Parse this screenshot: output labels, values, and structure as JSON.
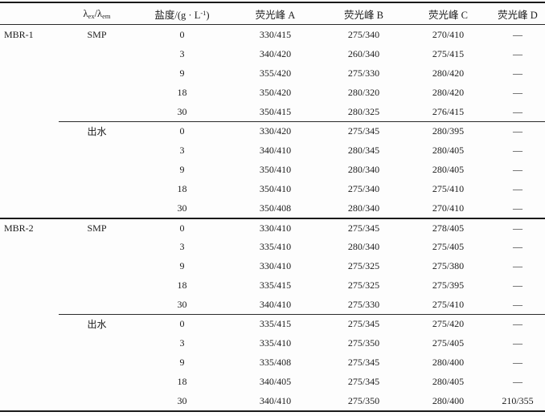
{
  "header": {
    "lambda": {
      "l1": "λ",
      "s1": "ex",
      "l2": "/λ",
      "s2": "em"
    },
    "salinity": {
      "p1": "盐度/(g · L",
      "sup": "-1",
      "p2": ")"
    },
    "peakA": "荧光峰 A",
    "peakB": "荧光峰 B",
    "peakC": "荧光峰 C",
    "peakD": "荧光峰 D"
  },
  "table": {
    "rows": [
      {
        "group": "MBR-1",
        "sample": "SMP",
        "salinity": "0",
        "peakA": "330/415",
        "peakB": "275/340",
        "peakC": "270/410",
        "peakD": "—",
        "separator": "none"
      },
      {
        "group": "",
        "sample": "",
        "salinity": "3",
        "peakA": "340/420",
        "peakB": "260/340",
        "peakC": "275/415",
        "peakD": "—",
        "separator": "none"
      },
      {
        "group": "",
        "sample": "",
        "salinity": "9",
        "peakA": "355/420",
        "peakB": "275/330",
        "peakC": "280/420",
        "peakD": "—",
        "separator": "none"
      },
      {
        "group": "",
        "sample": "",
        "salinity": "18",
        "peakA": "350/420",
        "peakB": "280/320",
        "peakC": "280/420",
        "peakD": "—",
        "separator": "none"
      },
      {
        "group": "",
        "sample": "",
        "salinity": "30",
        "peakA": "350/415",
        "peakB": "280/325",
        "peakC": "276/415",
        "peakD": "—",
        "separator": "none"
      },
      {
        "group": "",
        "sample": "出水",
        "salinity": "0",
        "peakA": "330/420",
        "peakB": "275/345",
        "peakC": "280/395",
        "peakD": "—",
        "separator": "partial"
      },
      {
        "group": "",
        "sample": "",
        "salinity": "3",
        "peakA": "340/410",
        "peakB": "280/345",
        "peakC": "280/405",
        "peakD": "—",
        "separator": "none"
      },
      {
        "group": "",
        "sample": "",
        "salinity": "9",
        "peakA": "350/410",
        "peakB": "280/340",
        "peakC": "280/405",
        "peakD": "—",
        "separator": "none"
      },
      {
        "group": "",
        "sample": "",
        "salinity": "18",
        "peakA": "350/410",
        "peakB": "275/340",
        "peakC": "275/410",
        "peakD": "—",
        "separator": "none"
      },
      {
        "group": "",
        "sample": "",
        "salinity": "30",
        "peakA": "350/408",
        "peakB": "280/340",
        "peakC": "270/410",
        "peakD": "—",
        "separator": "none"
      },
      {
        "group": "MBR-2",
        "sample": "SMP",
        "salinity": "0",
        "peakA": "330/410",
        "peakB": "275/345",
        "peakC": "278/405",
        "peakD": "—",
        "separator": "full"
      },
      {
        "group": "",
        "sample": "",
        "salinity": "3",
        "peakA": "335/410",
        "peakB": "280/340",
        "peakC": "275/405",
        "peakD": "—",
        "separator": "none"
      },
      {
        "group": "",
        "sample": "",
        "salinity": "9",
        "peakA": "330/410",
        "peakB": "275/325",
        "peakC": "275/380",
        "peakD": "—",
        "separator": "none"
      },
      {
        "group": "",
        "sample": "",
        "salinity": "18",
        "peakA": "335/415",
        "peakB": "275/325",
        "peakC": "275/395",
        "peakD": "—",
        "separator": "none"
      },
      {
        "group": "",
        "sample": "",
        "salinity": "30",
        "peakA": "340/410",
        "peakB": "275/330",
        "peakC": "275/410",
        "peakD": "—",
        "separator": "none"
      },
      {
        "group": "",
        "sample": "出水",
        "salinity": "0",
        "peakA": "335/415",
        "peakB": "275/345",
        "peakC": "275/420",
        "peakD": "—",
        "separator": "partial"
      },
      {
        "group": "",
        "sample": "",
        "salinity": "3",
        "peakA": "335/410",
        "peakB": "275/350",
        "peakC": "275/405",
        "peakD": "—",
        "separator": "none"
      },
      {
        "group": "",
        "sample": "",
        "salinity": "9",
        "peakA": "335/408",
        "peakB": "275/345",
        "peakC": "280/400",
        "peakD": "—",
        "separator": "none"
      },
      {
        "group": "",
        "sample": "",
        "salinity": "18",
        "peakA": "340/405",
        "peakB": "275/345",
        "peakC": "280/405",
        "peakD": "—",
        "separator": "none"
      },
      {
        "group": "",
        "sample": "",
        "salinity": "30",
        "peakA": "340/410",
        "peakB": "275/350",
        "peakC": "280/400",
        "peakD": "210/355",
        "separator": "none"
      }
    ]
  },
  "colors": {
    "rule": "#1a1a1a",
    "text": "#1c1c1c",
    "background": "#fdfdfd"
  }
}
